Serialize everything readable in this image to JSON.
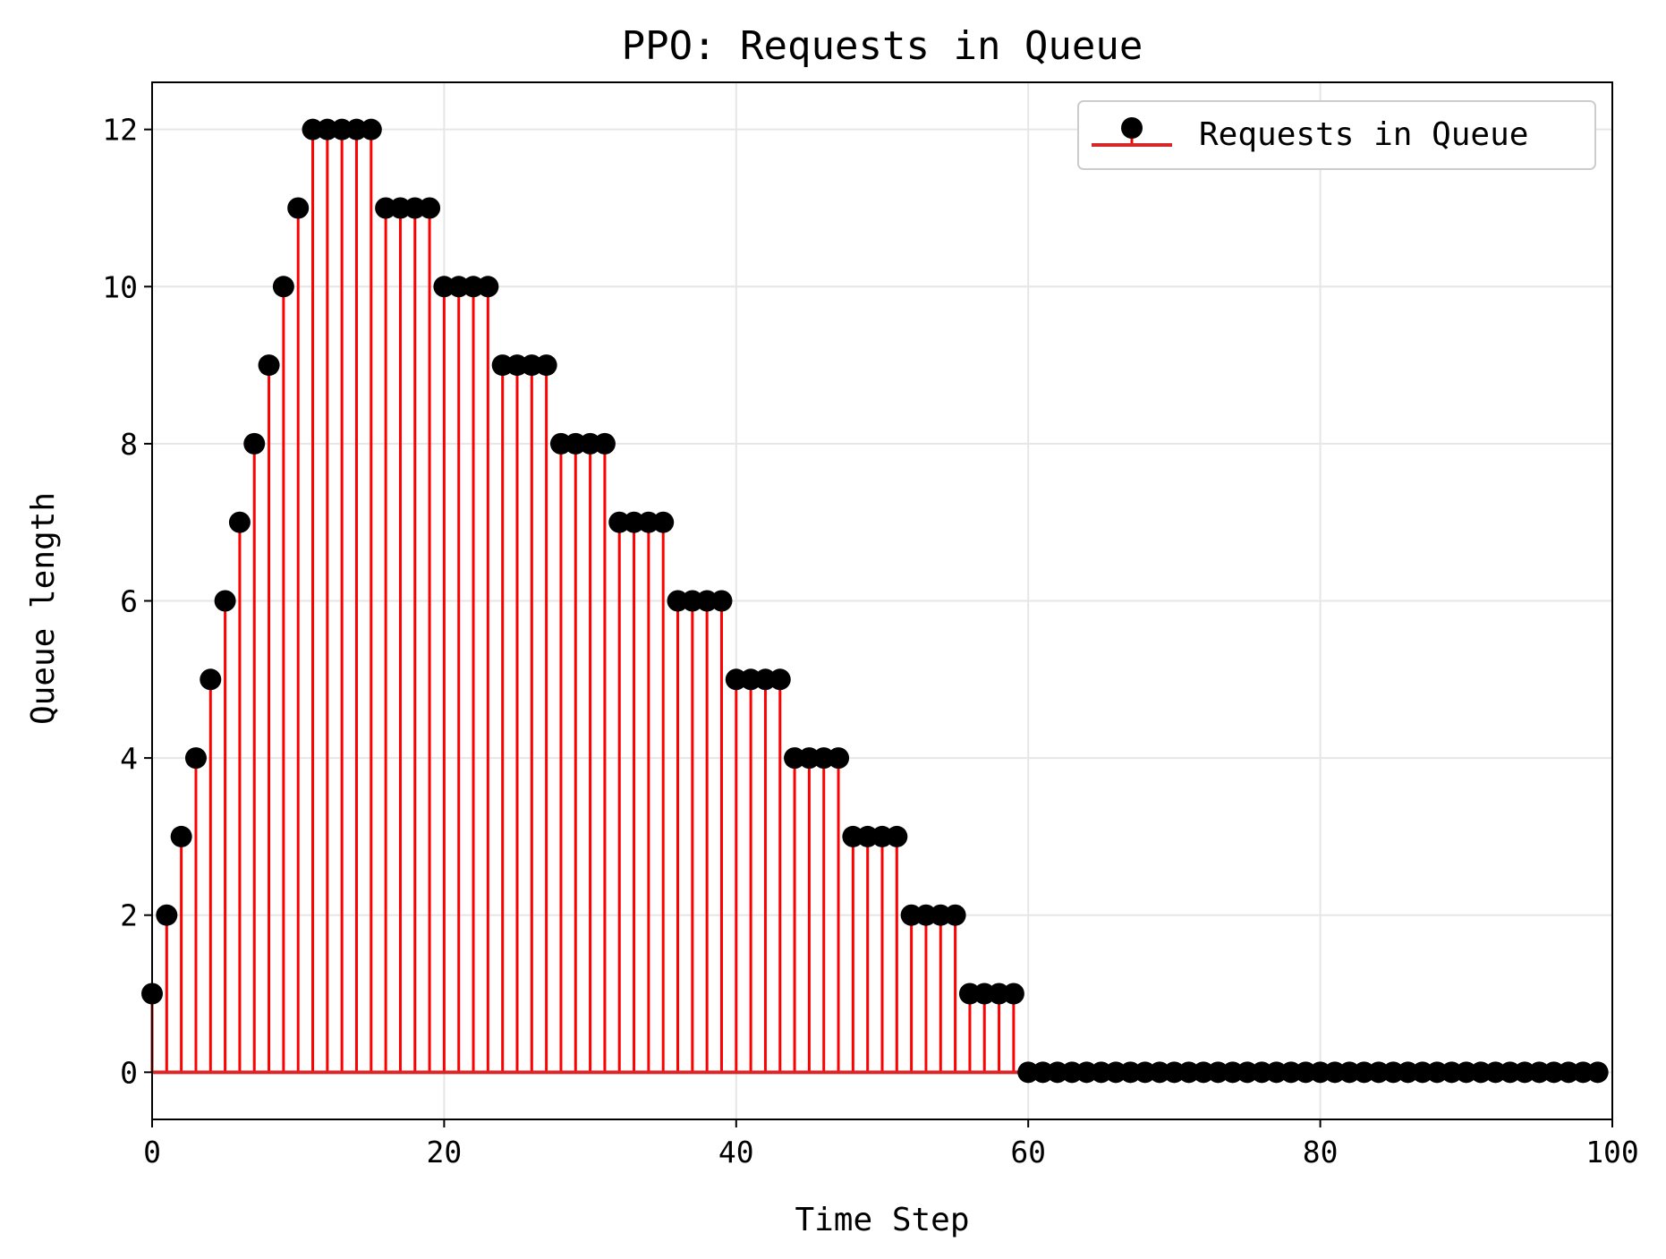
{
  "chart_data": {
    "type": "stem",
    "title": "PPO: Requests in Queue",
    "xlabel": "Time Step",
    "ylabel": "Queue length",
    "xlim": [
      0,
      100
    ],
    "ylim": [
      -0.6,
      12.6
    ],
    "xticks": [
      0,
      20,
      40,
      60,
      80,
      100
    ],
    "yticks": [
      0,
      2,
      4,
      6,
      8,
      10,
      12
    ],
    "grid": true,
    "legend": {
      "position": "top-right",
      "label": "Requests in Queue"
    },
    "colors": {
      "stem": "#ff0000",
      "marker": "#000000",
      "baseline": "#d62728",
      "grid": "#e6e6e6"
    },
    "series": [
      {
        "name": "Requests in Queue",
        "x": [
          0,
          1,
          2,
          3,
          4,
          5,
          6,
          7,
          8,
          9,
          10,
          11,
          12,
          13,
          14,
          15,
          16,
          17,
          18,
          19,
          20,
          21,
          22,
          23,
          24,
          25,
          26,
          27,
          28,
          29,
          30,
          31,
          32,
          33,
          34,
          35,
          36,
          37,
          38,
          39,
          40,
          41,
          42,
          43,
          44,
          45,
          46,
          47,
          48,
          49,
          50,
          51,
          52,
          53,
          54,
          55,
          56,
          57,
          58,
          59,
          60,
          61,
          62,
          63,
          64,
          65,
          66,
          67,
          68,
          69,
          70,
          71,
          72,
          73,
          74,
          75,
          76,
          77,
          78,
          79,
          80,
          81,
          82,
          83,
          84,
          85,
          86,
          87,
          88,
          89,
          90,
          91,
          92,
          93,
          94,
          95,
          96,
          97,
          98,
          99
        ],
        "values": [
          1,
          2,
          3,
          4,
          5,
          6,
          7,
          8,
          9,
          10,
          11,
          12,
          12,
          12,
          12,
          12,
          11,
          11,
          11,
          11,
          10,
          10,
          10,
          10,
          9,
          9,
          9,
          9,
          8,
          8,
          8,
          8,
          7,
          7,
          7,
          7,
          6,
          6,
          6,
          6,
          5,
          5,
          5,
          5,
          4,
          4,
          4,
          4,
          3,
          3,
          3,
          3,
          2,
          2,
          2,
          2,
          1,
          1,
          1,
          1,
          0,
          0,
          0,
          0,
          0,
          0,
          0,
          0,
          0,
          0,
          0,
          0,
          0,
          0,
          0,
          0,
          0,
          0,
          0,
          0,
          0,
          0,
          0,
          0,
          0,
          0,
          0,
          0,
          0,
          0,
          0,
          0,
          0,
          0,
          0,
          0,
          0,
          0,
          0,
          0
        ]
      }
    ]
  }
}
